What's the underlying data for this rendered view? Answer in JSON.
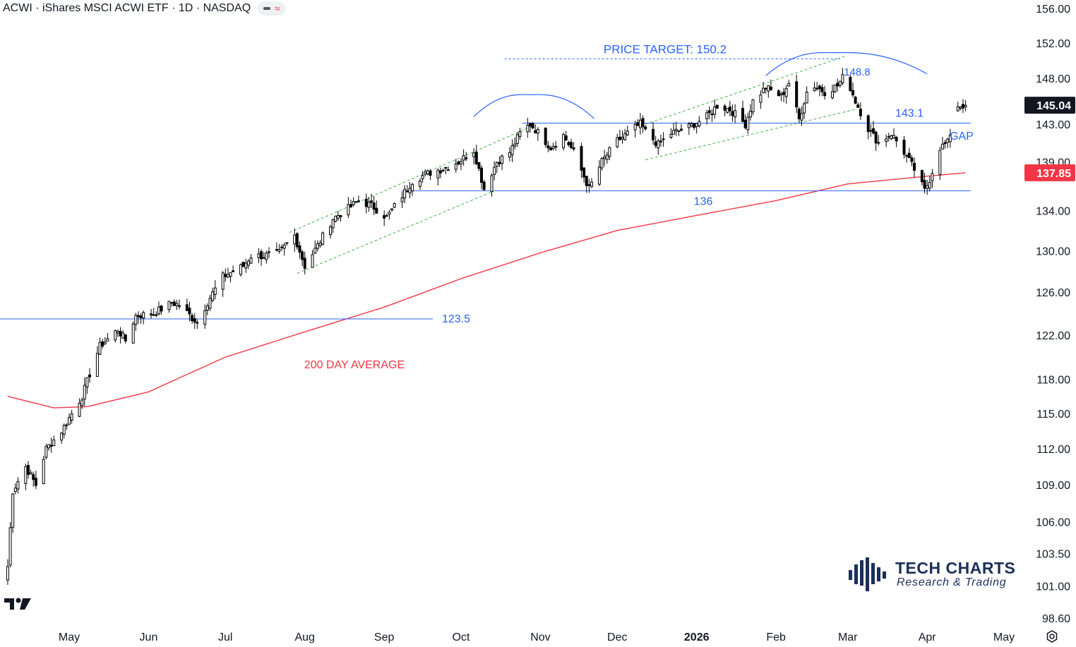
{
  "header": {
    "symbol_title": "ACWI · iShares MSCI ACWI ETF · 1D · NASDAQ",
    "indicator_glyph": "≈"
  },
  "chart_data": {
    "type": "candlestick",
    "title": "ACWI · iShares MSCI ACWI ETF · 1D · NASDAQ",
    "y_axis": {
      "scale": "log",
      "range": [
        98.6,
        156.0
      ],
      "ticks": [
        "156.00",
        "152.00",
        "148.00",
        "143.00",
        "139.00",
        "134.00",
        "130.00",
        "126.00",
        "122.00",
        "118.00",
        "115.00",
        "112.00",
        "109.00",
        "106.00",
        "103.50",
        "101.00",
        "98.60"
      ]
    },
    "x_axis": {
      "ticks": [
        {
          "label": "May",
          "date": "2025-05-01"
        },
        {
          "label": "Jun",
          "date": "2025-06-01"
        },
        {
          "label": "Jul",
          "date": "2025-07-01"
        },
        {
          "label": "Aug",
          "date": "2025-08-01"
        },
        {
          "label": "Sep",
          "date": "2025-09-01"
        },
        {
          "label": "Oct",
          "date": "2025-10-01"
        },
        {
          "label": "Nov",
          "date": "2025-11-01"
        },
        {
          "label": "Dec",
          "date": "2025-12-01"
        },
        {
          "label": "2026",
          "date": "2026-01-01",
          "bold": true
        },
        {
          "label": "Feb",
          "date": "2026-02-01"
        },
        {
          "label": "Mar",
          "date": "2026-03-01"
        },
        {
          "label": "Apr",
          "date": "2026-04-01"
        },
        {
          "label": "May",
          "date": "2026-05-01"
        }
      ]
    },
    "price_path": [
      [
        "2025-04-07",
        102.5
      ],
      [
        "2025-04-09",
        108.5
      ],
      [
        "2025-04-14",
        110.5
      ],
      [
        "2025-04-18",
        109
      ],
      [
        "2025-04-22",
        112
      ],
      [
        "2025-04-28",
        113.5
      ],
      [
        "2025-05-02",
        115
      ],
      [
        "2025-05-06",
        116.5
      ],
      [
        "2025-05-09",
        118.5
      ],
      [
        "2025-05-13",
        121
      ],
      [
        "2025-05-20",
        122.5
      ],
      [
        "2025-05-23",
        121.5
      ],
      [
        "2025-05-27",
        123.8
      ],
      [
        "2025-06-03",
        124
      ],
      [
        "2025-06-10",
        125
      ],
      [
        "2025-06-13",
        124.8
      ],
      [
        "2025-06-18",
        123.6
      ],
      [
        "2025-06-20",
        123.2
      ],
      [
        "2025-06-25",
        125.5
      ],
      [
        "2025-06-30",
        127.5
      ],
      [
        "2025-07-08",
        128.5
      ],
      [
        "2025-07-11",
        129.5
      ],
      [
        "2025-07-16",
        129.5
      ],
      [
        "2025-07-22",
        129.8
      ],
      [
        "2025-07-28",
        131.5
      ],
      [
        "2025-08-01",
        128.5
      ],
      [
        "2025-08-06",
        130.5
      ],
      [
        "2025-08-12",
        133.2
      ],
      [
        "2025-08-18",
        134.2
      ],
      [
        "2025-08-22",
        135.0
      ],
      [
        "2025-08-27",
        134.5
      ],
      [
        "2025-09-02",
        133.3
      ],
      [
        "2025-09-08",
        135.5
      ],
      [
        "2025-09-12",
        137.0
      ],
      [
        "2025-09-18",
        137.8
      ],
      [
        "2025-09-24",
        138.3
      ],
      [
        "2025-09-30",
        139.0
      ],
      [
        "2025-10-06",
        140.2
      ],
      [
        "2025-10-10",
        136.2
      ],
      [
        "2025-10-15",
        139.0
      ],
      [
        "2025-10-20",
        140.0
      ],
      [
        "2025-10-24",
        142.0
      ],
      [
        "2025-10-28",
        143.0
      ],
      [
        "2025-11-01",
        141.8
      ],
      [
        "2025-11-05",
        140.5
      ],
      [
        "2025-11-10",
        141.8
      ],
      [
        "2025-11-14",
        140.0
      ],
      [
        "2025-11-20",
        136.2
      ],
      [
        "2025-11-25",
        139.0
      ],
      [
        "2025-12-01",
        141.2
      ],
      [
        "2025-12-05",
        142.0
      ],
      [
        "2025-12-10",
        143.0
      ],
      [
        "2025-12-12",
        142.2
      ],
      [
        "2025-12-17",
        140.8
      ],
      [
        "2025-12-22",
        142.0
      ],
      [
        "2025-12-29",
        142.7
      ],
      [
        "2026-01-05",
        143.8
      ],
      [
        "2026-01-09",
        145.0
      ],
      [
        "2026-01-14",
        144.6
      ],
      [
        "2026-01-20",
        143.0
      ],
      [
        "2026-01-23",
        145.5
      ],
      [
        "2026-01-28",
        147.0
      ],
      [
        "2026-02-03",
        146.0
      ],
      [
        "2026-02-06",
        147.5
      ],
      [
        "2026-02-10",
        143.5
      ],
      [
        "2026-02-14",
        147.5
      ],
      [
        "2026-02-20",
        146.5
      ],
      [
        "2026-02-25",
        147.2
      ],
      [
        "2026-02-28",
        148.5
      ],
      [
        "2026-03-04",
        145.5
      ],
      [
        "2026-03-09",
        142.5
      ],
      [
        "2026-03-13",
        141.0
      ],
      [
        "2026-03-18",
        142.0
      ],
      [
        "2026-03-23",
        140.0
      ],
      [
        "2026-03-27",
        138.2
      ],
      [
        "2026-03-31",
        136.0
      ],
      [
        "2026-04-02",
        137.2
      ],
      [
        "2026-04-06",
        140.5
      ],
      [
        "2026-04-09",
        141.0
      ],
      [
        "2026-04-13",
        145.0
      ],
      [
        "2026-04-16",
        145.04
      ]
    ],
    "moving_average": {
      "label": "200 DAY AVERAGE",
      "color": "#f23645",
      "points": [
        [
          "2025-04-07",
          116.5
        ],
        [
          "2025-04-25",
          115.5
        ],
        [
          "2025-05-08",
          115.6
        ],
        [
          "2025-06-01",
          116.9
        ],
        [
          "2025-07-01",
          120.0
        ],
        [
          "2025-08-01",
          122.3
        ],
        [
          "2025-09-01",
          124.6
        ],
        [
          "2025-10-01",
          127.3
        ],
        [
          "2025-11-01",
          129.8
        ],
        [
          "2025-12-01",
          132.0
        ],
        [
          "2026-01-01",
          133.5
        ],
        [
          "2026-02-01",
          135.0
        ],
        [
          "2026-03-01",
          136.7
        ],
        [
          "2026-04-01",
          137.5
        ],
        [
          "2026-04-16",
          137.85
        ]
      ]
    },
    "price_labels": [
      {
        "text": "145.04",
        "value": 145.04,
        "bg": "#131722",
        "role": "last-price"
      },
      {
        "text": "137.85",
        "value": 137.85,
        "bg": "#f23645",
        "role": "ma-value"
      }
    ],
    "annotations": {
      "price_target": {
        "text": "PRICE TARGET: 150.2",
        "value": 150.2
      },
      "levels": [
        {
          "text": "123.5",
          "value": 123.5,
          "from": "2025-04-01",
          "to": "2025-09-20"
        },
        {
          "text": "136",
          "value": 136.0,
          "from": "2025-09-08",
          "to": "2026-04-18"
        },
        {
          "text": "143.1",
          "value": 143.1,
          "from": "2025-10-25",
          "to": "2026-04-18"
        }
      ],
      "peak_label": {
        "text": "148.8",
        "value": 148.8
      },
      "gap_label": "GAP",
      "ma_label": "200 DAY AVERAGE"
    },
    "colors": {
      "candle": "#000000",
      "level_line": "#2962ff",
      "annotation_text": "#2962ff",
      "channel": "#4caf50",
      "ma": "#f23645"
    }
  },
  "logo": {
    "line1": "TECH CHARTS",
    "line2": "Research & Trading"
  },
  "icons": {
    "platform": "tradingview-logo-icon",
    "settings": "settings-gear-icon"
  }
}
